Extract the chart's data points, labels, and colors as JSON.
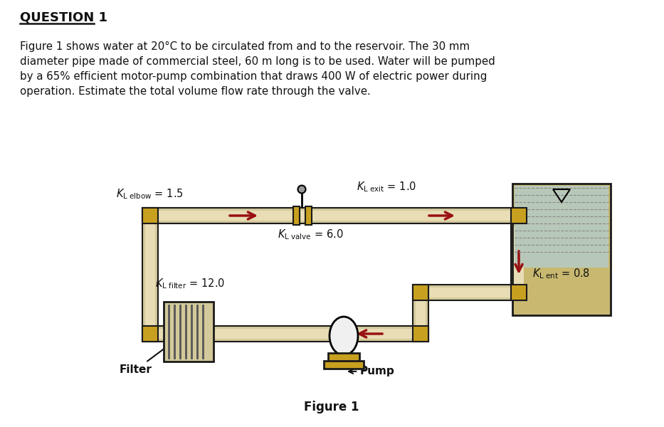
{
  "title": "QUESTION 1",
  "question_lines": [
    "Figure 1 shows water at 20°C to be circulated from and to the reservoir. The 30 mm",
    "diameter pipe made of commercial steel, 60 m long is to be used. Water will be pumped",
    "by a 65% efficient motor-pump combination that draws 400 W of electric power during",
    "operation. Estimate the total volume flow rate through the valve."
  ],
  "figure_caption": "Figure 1",
  "pipe_color": "#d4c99a",
  "pipe_edge": "#1a1a1a",
  "pipe_inner": "#e8ddb5",
  "gold_color": "#c8a020",
  "res_wall_color": "#c8b870",
  "res_water_color": "#b8c8b8",
  "water_hatch_color": "#888888",
  "pump_body_color": "#f0f0f0",
  "arrow_color": "#991111",
  "text_color": "#111111",
  "bg_color": "#ffffff",
  "filter_line_color": "#555555"
}
